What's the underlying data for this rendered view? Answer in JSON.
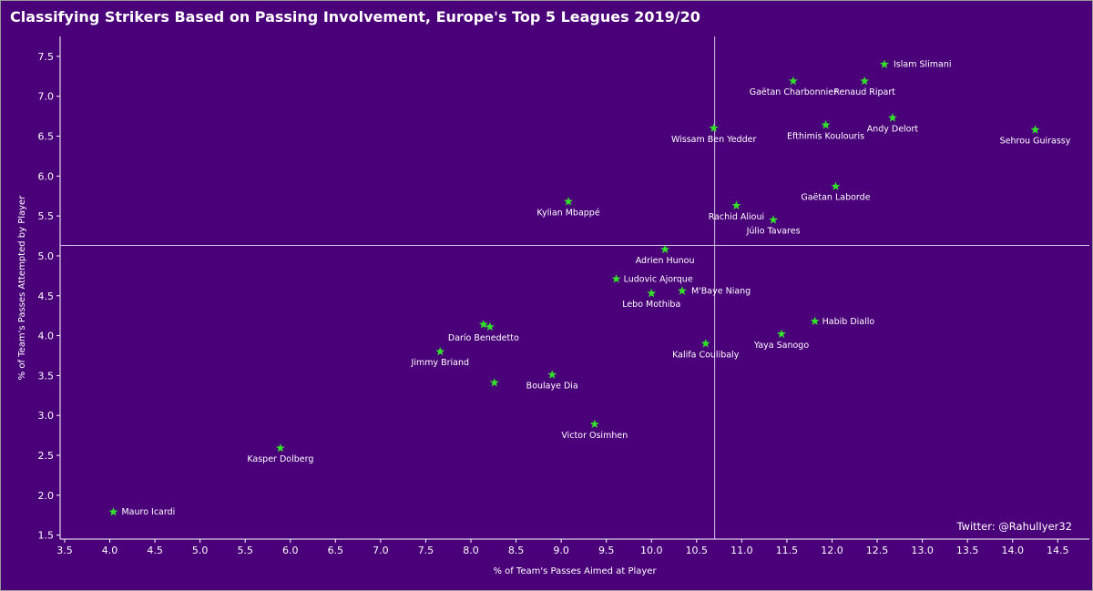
{
  "chart_data": {
    "type": "scatter",
    "title": "Classifying Strikers Based on Passing Involvement, Europe's Top 5 Leagues 2019/20",
    "xlabel": "% of Team's Passes Aimed at Player",
    "ylabel": "% of Team's Passes Attempted by Player",
    "xlim": [
      3.45,
      14.85
    ],
    "ylim": [
      1.45,
      7.75
    ],
    "xticks": [
      "3.5",
      "4.0",
      "4.5",
      "5.0",
      "5.5",
      "6.0",
      "6.5",
      "7.0",
      "7.5",
      "8.0",
      "8.5",
      "9.0",
      "9.5",
      "10.0",
      "10.5",
      "11.0",
      "11.5",
      "12.0",
      "12.5",
      "13.0",
      "13.5",
      "14.0",
      "14.5"
    ],
    "yticks": [
      "1.5",
      "2.0",
      "2.5",
      "3.0",
      "3.5",
      "4.0",
      "4.5",
      "5.0",
      "5.5",
      "6.0",
      "6.5",
      "7.0",
      "7.5"
    ],
    "reference_lines": {
      "x": 10.7,
      "y": 5.13
    },
    "marker_color": "#33e02a",
    "background_color": "#4a0079",
    "grid": false,
    "points": [
      {
        "label": "Islam Slimani",
        "x": 12.58,
        "y": 7.4
      },
      {
        "label": "Gaëtan Charbonnier",
        "x": 11.57,
        "y": 7.19
      },
      {
        "label": "Renaud Ripart",
        "x": 12.36,
        "y": 7.19
      },
      {
        "label": "Andy Delort",
        "x": 12.67,
        "y": 6.73
      },
      {
        "label": "Efthimis Koulouris",
        "x": 11.93,
        "y": 6.64
      },
      {
        "label": "Wissam Ben Yedder",
        "x": 10.69,
        "y": 6.6
      },
      {
        "label": "Sehrou Guirassy",
        "x": 14.25,
        "y": 6.58
      },
      {
        "label": "Gaëtan Laborde",
        "x": 12.04,
        "y": 5.87
      },
      {
        "label": "Kylian Mbappé",
        "x": 9.08,
        "y": 5.68
      },
      {
        "label": "Rachid Alioui",
        "x": 10.94,
        "y": 5.63
      },
      {
        "label": "Júlio Tavares",
        "x": 11.35,
        "y": 5.45
      },
      {
        "label": "Adrien Hunou",
        "x": 10.15,
        "y": 5.08
      },
      {
        "label": "Ludovic Ajorque",
        "x": 9.61,
        "y": 4.71
      },
      {
        "label": "M'Baye Niang",
        "x": 10.34,
        "y": 4.56
      },
      {
        "label": "Lebo Mothiba",
        "x": 10.0,
        "y": 4.53
      },
      {
        "label": "Habib Diallo",
        "x": 11.81,
        "y": 4.18
      },
      {
        "label": "",
        "x": 8.14,
        "y": 4.14
      },
      {
        "label": "Darío Benedetto",
        "x": 8.21,
        "y": 4.11
      },
      {
        "label": "Yaya Sanogo",
        "x": 11.44,
        "y": 4.02
      },
      {
        "label": "Kalifa Coulibaly",
        "x": 10.6,
        "y": 3.9
      },
      {
        "label": "Jimmy Briand",
        "x": 7.66,
        "y": 3.8
      },
      {
        "label": "Boulaye Dia",
        "x": 8.9,
        "y": 3.51
      },
      {
        "label": "",
        "x": 8.26,
        "y": 3.41
      },
      {
        "label": "Victor Osimhen",
        "x": 9.37,
        "y": 2.89
      },
      {
        "label": "Kasper Dolberg",
        "x": 5.89,
        "y": 2.59
      },
      {
        "label": "Mauro Icardi",
        "x": 4.04,
        "y": 1.79
      }
    ]
  },
  "credit": "Twitter: @RahulIyer32"
}
